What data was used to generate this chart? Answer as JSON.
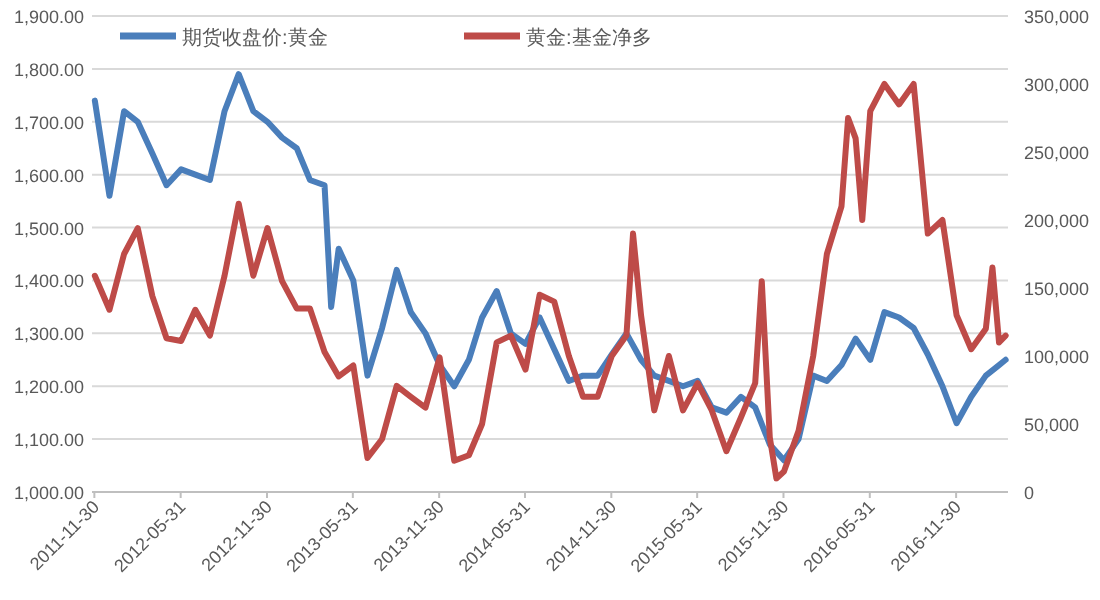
{
  "chart_data": {
    "type": "line",
    "legend": "top",
    "grid": "y",
    "line_style": "solid",
    "marker": "none",
    "xlim": [
      "2011-11-25",
      "2017-03-20"
    ],
    "xticks": [
      "2011-11-30",
      "2012-05-31",
      "2012-11-30",
      "2013-05-31",
      "2013-11-30",
      "2014-05-31",
      "2014-11-30",
      "2015-05-31",
      "2015-11-30",
      "2016-05-31",
      "2016-11-30"
    ],
    "ylim": [
      1000,
      1900
    ],
    "yticks": [
      {
        "value": 1000,
        "label": "1,000.00"
      },
      {
        "value": 1100,
        "label": "1,100.00"
      },
      {
        "value": 1200,
        "label": "1,200.00"
      },
      {
        "value": 1300,
        "label": "1,300.00"
      },
      {
        "value": 1400,
        "label": "1,400.00"
      },
      {
        "value": 1500,
        "label": "1,500.00"
      },
      {
        "value": 1600,
        "label": "1,600.00"
      },
      {
        "value": 1700,
        "label": "1,700.00"
      },
      {
        "value": 1800,
        "label": "1,800.00"
      },
      {
        "value": 1900,
        "label": "1,900.00"
      }
    ],
    "y2lim": [
      0,
      350000
    ],
    "y2ticks": [
      0,
      {
        "value": 50000,
        "label": "50,000"
      },
      {
        "value": 100000,
        "label": "100,000"
      },
      {
        "value": 150000,
        "label": "150,000"
      },
      {
        "value": 200000,
        "label": "200,000"
      },
      {
        "value": 250000,
        "label": "250,000"
      },
      {
        "value": 300000,
        "label": "300,000"
      },
      {
        "value": 350000,
        "label": "350,000"
      }
    ],
    "series": [
      {
        "name": "期货收盘价:黄金",
        "color": "#4a7ebb",
        "axis": "y",
        "x": [
          "2011-12-01",
          "2012-01-01",
          "2012-02-01",
          "2012-03-01",
          "2012-04-01",
          "2012-05-01",
          "2012-06-01",
          "2012-07-01",
          "2012-08-01",
          "2012-09-01",
          "2012-10-01",
          "2012-11-01",
          "2012-12-01",
          "2013-01-01",
          "2013-02-01",
          "2013-03-01",
          "2013-04-01",
          "2013-04-15",
          "2013-05-01",
          "2013-06-01",
          "2013-07-01",
          "2013-08-01",
          "2013-09-01",
          "2013-10-01",
          "2013-11-01",
          "2013-12-01",
          "2014-01-01",
          "2014-02-01",
          "2014-03-01",
          "2014-04-01",
          "2014-05-01",
          "2014-06-01",
          "2014-07-01",
          "2014-08-01",
          "2014-09-01",
          "2014-10-01",
          "2014-11-01",
          "2014-12-01",
          "2015-01-01",
          "2015-02-01",
          "2015-03-01",
          "2015-04-01",
          "2015-05-01",
          "2015-06-01",
          "2015-07-01",
          "2015-08-01",
          "2015-09-01",
          "2015-10-01",
          "2015-11-01",
          "2015-12-01",
          "2016-01-01",
          "2016-02-01",
          "2016-03-01",
          "2016-04-01",
          "2016-05-01",
          "2016-06-01",
          "2016-07-01",
          "2016-08-01",
          "2016-09-01",
          "2016-10-01",
          "2016-11-01",
          "2016-12-01",
          "2017-01-01",
          "2017-02-01",
          "2017-03-01",
          "2017-03-15"
        ],
        "values": [
          1740,
          1560,
          1720,
          1700,
          1640,
          1580,
          1610,
          1600,
          1590,
          1720,
          1790,
          1720,
          1700,
          1670,
          1650,
          1590,
          1580,
          1350,
          1460,
          1400,
          1220,
          1310,
          1420,
          1340,
          1300,
          1240,
          1200,
          1250,
          1330,
          1380,
          1300,
          1280,
          1330,
          1270,
          1210,
          1220,
          1220,
          1260,
          1300,
          1250,
          1220,
          1210,
          1200,
          1210,
          1160,
          1150,
          1180,
          1160,
          1090,
          1060,
          1100,
          1220,
          1210,
          1240,
          1290,
          1250,
          1340,
          1330,
          1310,
          1260,
          1200,
          1130,
          1180,
          1220,
          1240,
          1250
        ]
      },
      {
        "name": "黄金:基金净多",
        "color": "#be4b48",
        "axis": "y2",
        "x": [
          "2011-12-01",
          "2012-01-01",
          "2012-02-01",
          "2012-03-01",
          "2012-04-01",
          "2012-05-01",
          "2012-06-01",
          "2012-07-01",
          "2012-08-01",
          "2012-09-01",
          "2012-10-01",
          "2012-11-01",
          "2012-12-01",
          "2013-01-01",
          "2013-02-01",
          "2013-03-01",
          "2013-04-01",
          "2013-05-01",
          "2013-06-01",
          "2013-07-01",
          "2013-08-01",
          "2013-09-01",
          "2013-10-01",
          "2013-11-01",
          "2013-12-01",
          "2014-01-01",
          "2014-02-01",
          "2014-03-01",
          "2014-04-01",
          "2014-05-01",
          "2014-06-01",
          "2014-07-01",
          "2014-08-01",
          "2014-09-01",
          "2014-10-01",
          "2014-11-01",
          "2014-12-01",
          "2015-01-01",
          "2015-01-15",
          "2015-02-01",
          "2015-03-01",
          "2015-04-01",
          "2015-05-01",
          "2015-06-01",
          "2015-07-01",
          "2015-08-01",
          "2015-09-01",
          "2015-10-01",
          "2015-10-15",
          "2015-11-01",
          "2015-11-15",
          "2015-12-01",
          "2016-01-01",
          "2016-02-01",
          "2016-03-01",
          "2016-04-01",
          "2016-04-15",
          "2016-05-01",
          "2016-05-15",
          "2016-06-01",
          "2016-07-01",
          "2016-08-01",
          "2016-09-01",
          "2016-10-01",
          "2016-11-01",
          "2016-12-01",
          "2017-01-01",
          "2017-02-01",
          "2017-02-15",
          "2017-03-01",
          "2017-03-15"
        ],
        "values": [
          159000,
          134000,
          175000,
          194000,
          144000,
          113000,
          111000,
          134000,
          115000,
          159000,
          212000,
          159000,
          194000,
          155000,
          135000,
          135000,
          103000,
          85000,
          93000,
          25000,
          39000,
          78000,
          70000,
          62000,
          99000,
          23000,
          27000,
          50000,
          110000,
          115000,
          90000,
          145000,
          140000,
          100000,
          70000,
          70000,
          100000,
          115000,
          190000,
          130000,
          60000,
          100000,
          60000,
          80000,
          60000,
          30000,
          55000,
          80000,
          155000,
          40000,
          10000,
          15000,
          45000,
          100000,
          175000,
          210000,
          275000,
          260000,
          200000,
          280000,
          300000,
          285000,
          300000,
          190000,
          200000,
          130000,
          105000,
          120000,
          165000,
          110000,
          115000
        ]
      }
    ]
  }
}
